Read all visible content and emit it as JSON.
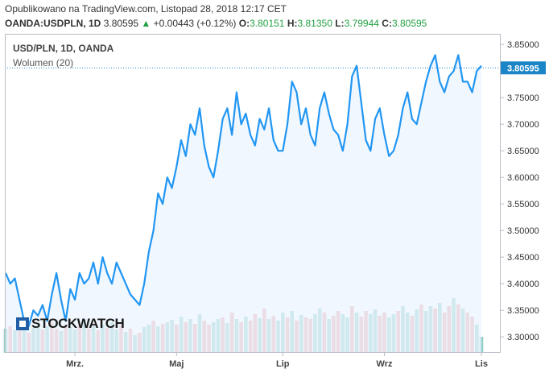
{
  "header": {
    "published": "Opublikowano na TradingView.com, Listopad 28, 2018 12:17 CET",
    "symbol": "OANDA:USDPLN, 1D",
    "last": "3.80595",
    "change": "+0.00443 (+0.12%)",
    "o_label": "O:",
    "o_value": "3.80151",
    "h_label": "H:",
    "h_value": "3.81350",
    "l_label": "L:",
    "l_value": "3.79944",
    "c_label": "C:",
    "c_value": "3.80595"
  },
  "legend": {
    "main": "USD/PLN, 1D, OANDA",
    "volume": "Wolumen (20)"
  },
  "watermark": "STOCKWATCH",
  "price_label": "3.80595",
  "colors": {
    "line": "#2196f3",
    "fill": "#eaf4fd",
    "vol_up": "#94cfc9",
    "vol_down": "#efa8ac",
    "axis": "#b9bdc6"
  },
  "chart_data": {
    "type": "line",
    "ylim": [
      3.27,
      3.87
    ],
    "yticks": [
      "3.30000",
      "3.35000",
      "3.40000",
      "3.45000",
      "3.50000",
      "3.55000",
      "3.60000",
      "3.65000",
      "3.70000",
      "3.75000",
      "3.80000",
      "3.85000"
    ],
    "yticks_values": [
      3.3,
      3.35,
      3.4,
      3.45,
      3.5,
      3.55,
      3.6,
      3.65,
      3.7,
      3.75,
      3.8,
      3.85
    ],
    "xtick_labels": [
      "Mrz.",
      "Maj",
      "Lip",
      "Wrz",
      "Lis"
    ],
    "xtick_index": [
      15,
      37,
      60,
      82,
      103
    ],
    "last_value": 3.80595,
    "values": [
      3.42,
      3.4,
      3.41,
      3.37,
      3.33,
      3.32,
      3.35,
      3.34,
      3.36,
      3.33,
      3.38,
      3.42,
      3.37,
      3.33,
      3.39,
      3.37,
      3.42,
      3.4,
      3.41,
      3.44,
      3.4,
      3.45,
      3.42,
      3.4,
      3.44,
      3.42,
      3.4,
      3.38,
      3.37,
      3.36,
      3.4,
      3.46,
      3.5,
      3.57,
      3.55,
      3.6,
      3.58,
      3.62,
      3.67,
      3.64,
      3.7,
      3.68,
      3.73,
      3.66,
      3.62,
      3.6,
      3.65,
      3.71,
      3.73,
      3.68,
      3.76,
      3.7,
      3.72,
      3.68,
      3.66,
      3.71,
      3.69,
      3.73,
      3.67,
      3.65,
      3.65,
      3.7,
      3.78,
      3.76,
      3.7,
      3.73,
      3.68,
      3.66,
      3.73,
      3.76,
      3.72,
      3.69,
      3.68,
      3.65,
      3.7,
      3.79,
      3.81,
      3.74,
      3.67,
      3.65,
      3.71,
      3.73,
      3.68,
      3.64,
      3.65,
      3.68,
      3.73,
      3.76,
      3.71,
      3.7,
      3.74,
      3.78,
      3.81,
      3.83,
      3.78,
      3.76,
      3.79,
      3.8,
      3.83,
      3.78,
      3.78,
      3.76,
      3.8,
      3.81
    ],
    "volume": [
      0.3,
      0.33,
      0.28,
      0.35,
      0.4,
      0.25,
      0.31,
      0.36,
      0.29,
      0.33,
      0.38,
      0.3,
      0.27,
      0.35,
      0.32,
      0.29,
      0.36,
      0.41,
      0.3,
      0.33,
      0.28,
      0.35,
      0.31,
      0.38,
      0.29,
      0.34,
      0.26,
      0.3,
      0.22,
      0.25,
      0.32,
      0.35,
      0.4,
      0.33,
      0.36,
      0.38,
      0.41,
      0.35,
      0.45,
      0.38,
      0.42,
      0.36,
      0.48,
      0.4,
      0.35,
      0.38,
      0.42,
      0.44,
      0.37,
      0.5,
      0.42,
      0.38,
      0.45,
      0.4,
      0.48,
      0.43,
      0.55,
      0.42,
      0.46,
      0.4,
      0.5,
      0.44,
      0.52,
      0.4,
      0.47,
      0.44,
      0.42,
      0.48,
      0.55,
      0.5,
      0.42,
      0.46,
      0.52,
      0.48,
      0.44,
      0.58,
      0.5,
      0.45,
      0.52,
      0.48,
      0.54,
      0.46,
      0.5,
      0.44,
      0.48,
      0.52,
      0.58,
      0.5,
      0.46,
      0.54,
      0.6,
      0.52,
      0.58,
      0.55,
      0.62,
      0.5,
      0.58,
      0.68,
      0.6,
      0.55,
      0.5,
      0.45,
      0.35,
      0.2
    ],
    "volume_up": [
      1,
      0,
      1,
      0,
      1,
      0,
      1,
      1,
      0,
      1,
      0,
      0,
      1,
      0,
      1,
      1,
      0,
      1,
      0,
      1,
      0,
      1,
      0,
      1,
      1,
      0,
      1,
      0,
      1,
      0,
      1,
      1,
      0,
      1,
      0,
      1,
      1,
      0,
      1,
      0,
      1,
      0,
      1,
      0,
      0,
      1,
      1,
      0,
      1,
      0,
      1,
      0,
      1,
      0,
      0,
      1,
      0,
      1,
      0,
      1,
      1,
      0,
      1,
      0,
      1,
      0,
      0,
      1,
      1,
      0,
      1,
      0,
      0,
      1,
      1,
      0,
      1,
      0,
      0,
      1,
      1,
      0,
      0,
      1,
      1,
      0,
      1,
      1,
      0,
      1,
      0,
      1,
      1,
      0,
      1,
      0,
      0,
      1,
      0,
      1,
      0,
      0,
      1,
      1
    ]
  }
}
